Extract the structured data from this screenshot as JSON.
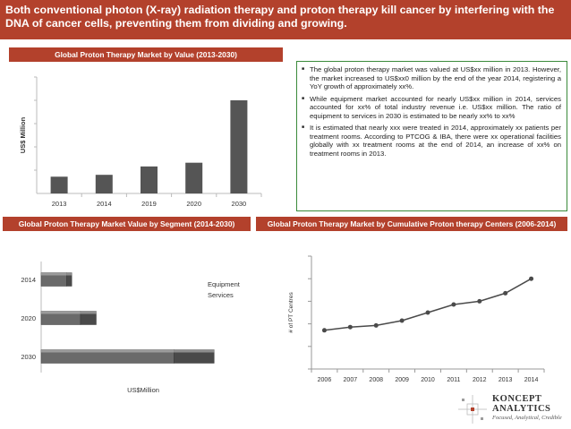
{
  "header": {
    "title": "Both conventional photon (X-ray) radiation therapy and proton therapy kill cancer by interfering with the DNA of cancer cells, preventing them from dividing and growing."
  },
  "colors": {
    "accent": "#b3412c",
    "border": "#3a8a3a",
    "bar": "#555555"
  },
  "bullets": [
    "The global proton therapy market was valued at US$xx million in 2013. However, the market increased to US$xx0 million by the end of the year 2014, registering a YoY growth of approximately xx%.",
    "While equipment market accounted for nearly US$xx million in 2014, services accounted for xx% of total industry revenue i.e. US$xx million. The ratio of equipment to services in 2030 is estimated to be nearly xx% to xx%",
    "It is estimated that nearly xxx were treated in 2014, approximately xx patients per treatment rooms. According to PTCOG & IBA, there were xx operational facilities globally with xx treatment rooms at the end of 2014, an increase of xx% on treatment rooms in 2013."
  ],
  "chart_data": [
    {
      "type": "bar",
      "title": "Global Proton Therapy Market by Value (2013-2030)",
      "categories": [
        "2013",
        "2014",
        "2019",
        "2020",
        "2030"
      ],
      "values": [
        18,
        20,
        29,
        33,
        100
      ],
      "ylabel": "US$ Million",
      "xlabel": "",
      "ylim": [
        0,
        125
      ]
    },
    {
      "type": "bar",
      "orientation": "horizontal",
      "stacked": true,
      "title": "Global Proton Therapy Market Value by Segment (2014-2030)",
      "categories": [
        "2014",
        "2020",
        "2030"
      ],
      "series": [
        {
          "name": "Equipment",
          "values": [
            14.5,
            22.5,
            76
          ]
        },
        {
          "name": "Services",
          "values": [
            3,
            9,
            23
          ]
        }
      ],
      "xlabel": "US$Million",
      "ylabel": "",
      "xlim": [
        0,
        125
      ]
    },
    {
      "type": "line",
      "title": "Global Proton Therapy Market by Cumulative Proton therapy Centers (2006-2014)",
      "x": [
        "2006",
        "2007",
        "2008",
        "2009",
        "2010",
        "2011",
        "2012",
        "2013",
        "2014"
      ],
      "values": [
        24,
        26,
        27,
        30,
        35,
        40,
        42,
        47,
        56
      ],
      "ylabel": "# of PT Centres",
      "xlabel": "",
      "ylim": [
        0,
        70
      ]
    }
  ],
  "logo": {
    "name_line1": "KONCEPT",
    "name_line2": "ANALYTICS",
    "tagline": "Focused, Analytical, Credible"
  }
}
